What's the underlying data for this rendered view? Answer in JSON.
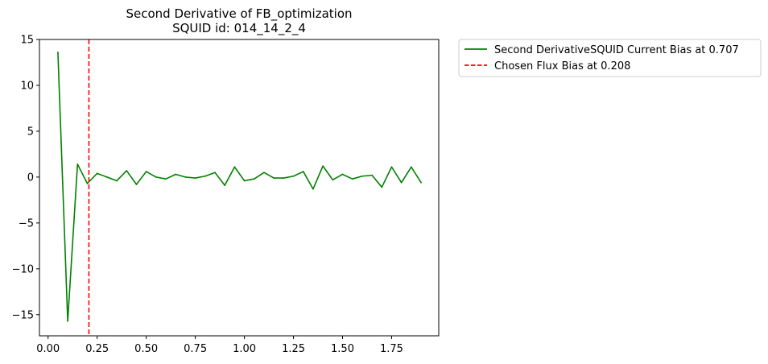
{
  "chart_data": {
    "type": "line",
    "title": "Second Derivative of FB_optimization",
    "subtitle": "SQUID id: 014_14_2_4",
    "xlabel": "",
    "ylabel": "",
    "xlim": [
      -0.044,
      1.99
    ],
    "ylim": [
      -17.3,
      15.0
    ],
    "xticks": [
      0.0,
      0.25,
      0.5,
      0.75,
      1.0,
      1.25,
      1.5,
      1.75
    ],
    "xtick_labels": [
      "0.00",
      "0.25",
      "0.50",
      "0.75",
      "1.00",
      "1.25",
      "1.50",
      "1.75"
    ],
    "yticks": [
      15,
      10,
      5,
      0,
      -5,
      -10,
      -15
    ],
    "ytick_labels": [
      "15",
      "10",
      "5",
      "0",
      "−5",
      "−10",
      "−15"
    ],
    "grid": false,
    "legend_position": "outside upper-right",
    "series": [
      {
        "name": "Second DerivativeSQUID Current Bias at 0.707",
        "color": "#008000",
        "style": "solid",
        "x": [
          0.05,
          0.1,
          0.15,
          0.2,
          0.25,
          0.3,
          0.35,
          0.4,
          0.45,
          0.5,
          0.55,
          0.6,
          0.65,
          0.7,
          0.75,
          0.8,
          0.85,
          0.9,
          0.95,
          1.0,
          1.05,
          1.1,
          1.15,
          1.2,
          1.25,
          1.3,
          1.35,
          1.4,
          1.45,
          1.5,
          1.55,
          1.6,
          1.65,
          1.7,
          1.75,
          1.8,
          1.85,
          1.9
        ],
        "y": [
          13.6,
          -15.7,
          1.4,
          -0.7,
          0.4,
          0.0,
          -0.4,
          0.7,
          -0.8,
          0.6,
          0.0,
          -0.2,
          0.3,
          0.0,
          -0.1,
          0.1,
          0.5,
          -0.9,
          1.1,
          -0.4,
          -0.2,
          0.5,
          -0.1,
          -0.1,
          0.1,
          0.6,
          -1.3,
          1.2,
          -0.3,
          0.3,
          -0.2,
          0.1,
          0.2,
          -1.1,
          1.1,
          -0.6,
          1.1,
          -0.6
        ]
      }
    ],
    "vlines": [
      {
        "name": "Chosen Flux Bias at 0.208",
        "x": 0.208,
        "color": "#ff0000",
        "style": "dashed"
      }
    ]
  }
}
